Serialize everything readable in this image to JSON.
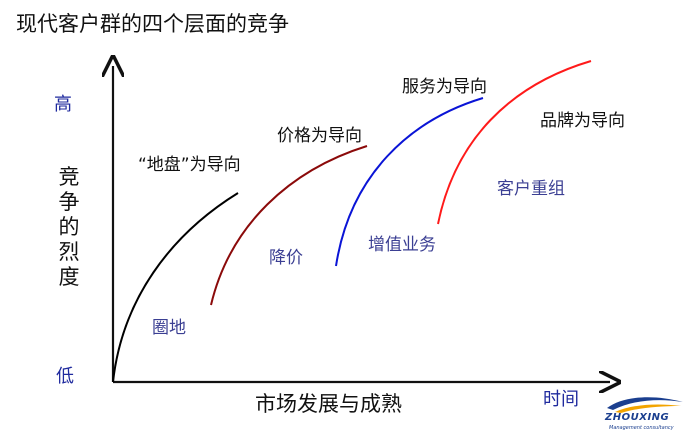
{
  "title": "现代客户群的四个层面的竞争",
  "y_axis": {
    "title": "竞争的烈度",
    "high": "高",
    "low": "低"
  },
  "x_axis": {
    "title": "市场发展与成熟",
    "end_label": "时间"
  },
  "stages": [
    {
      "orientation": "“地盘”为导向",
      "activity": "圈地",
      "color": "#000000"
    },
    {
      "orientation": "价格为导向",
      "activity": "降价",
      "color": "#8b0a0a"
    },
    {
      "orientation": "服务为导向",
      "activity": "增值业务",
      "color": "#0a14d6"
    },
    {
      "orientation": "品牌为导向",
      "activity": "客户重组",
      "color": "#ff1a1a"
    }
  ],
  "logo": {
    "name": "ZHOUXING",
    "tagline": "Management consultancy"
  }
}
